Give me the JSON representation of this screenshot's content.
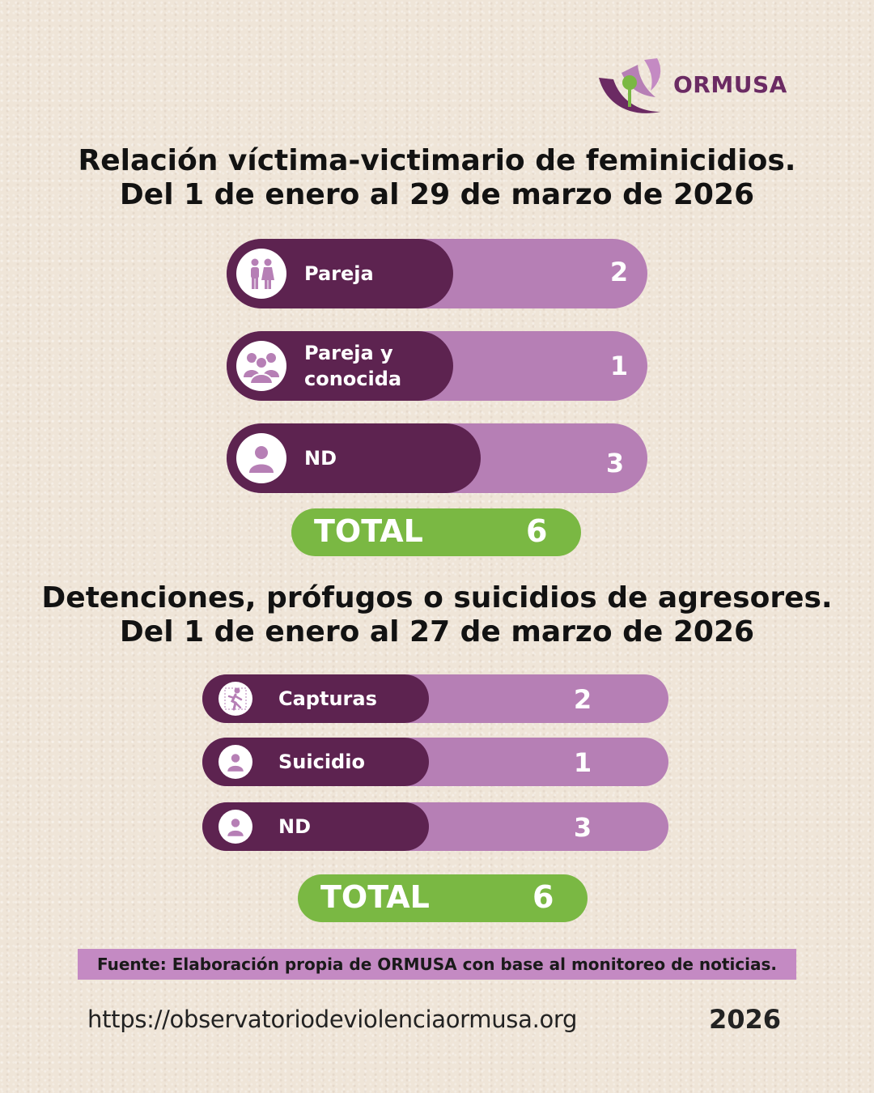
{
  "brand": {
    "name": "ORMUSA"
  },
  "section1": {
    "title_line1": "Relación víctima-victimario de feminicidios.",
    "title_line2": "Del 1 de enero al 29 de marzo de 2026",
    "rows": [
      {
        "label_line1": "Pareja",
        "label_line2": "",
        "value": "2",
        "icon": "couple-icon"
      },
      {
        "label_line1": "Pareja y",
        "label_line2": "conocida",
        "value": "1",
        "icon": "group-icon"
      },
      {
        "label_line1": "ND",
        "label_line2": "",
        "value": "3",
        "icon": "person-icon"
      }
    ],
    "total_label": "TOTAL",
    "total_value": "6"
  },
  "section2": {
    "title_line1": "Detenciones, prófugos o suicidios de agresores.",
    "title_line2": "Del 1 de enero al 27 de marzo de 2026",
    "rows": [
      {
        "label": "Capturas",
        "value": "2",
        "icon": "arrest-icon"
      },
      {
        "label": "Suicidio",
        "value": "1",
        "icon": "person-icon"
      },
      {
        "label": "ND",
        "value": "3",
        "icon": "person-icon"
      }
    ],
    "total_label": "TOTAL",
    "total_value": "6"
  },
  "footer": {
    "source": "Fuente: Elaboración propia de ORMUSA con base al monitoreo de noticias.",
    "url": "https://observatoriodeviolenciaormusa.org",
    "year": "2026"
  },
  "colors": {
    "dark_purple": "#5d2350",
    "light_purple": "#b67fb5",
    "green": "#7ab843",
    "source_bg": "#c48ac3"
  }
}
